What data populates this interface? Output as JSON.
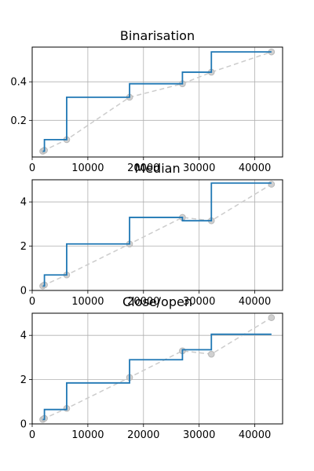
{
  "chart_data": [
    {
      "type": "line",
      "title": "Binarisation",
      "xlim": [
        0,
        45000
      ],
      "ylim": [
        0.01,
        0.58
      ],
      "xticks": [
        0,
        10000,
        20000,
        30000,
        40000
      ],
      "yticks": [
        0.2,
        0.4
      ],
      "ytick_labels": [
        "0.2",
        "0.4"
      ],
      "grid": true,
      "series": [
        {
          "style": "dashed-with-markers",
          "color": "#cccccc",
          "x": [
            1900,
            2200,
            6200,
            17500,
            27000,
            32200,
            43000
          ],
          "y": [
            0.04,
            0.045,
            0.1,
            0.32,
            0.39,
            0.45,
            0.555
          ]
        },
        {
          "style": "step",
          "color": "#1f77b4",
          "x": [
            1900,
            2200,
            6200,
            17500,
            27000,
            32200,
            43000
          ],
          "y": [
            0.04,
            0.1,
            0.32,
            0.39,
            0.45,
            0.555,
            0.555
          ]
        }
      ]
    },
    {
      "type": "line",
      "title": "Median",
      "xlim": [
        0,
        45000
      ],
      "ylim": [
        0,
        5
      ],
      "xticks": [
        0,
        10000,
        20000,
        30000,
        40000
      ],
      "yticks": [
        0,
        2,
        4
      ],
      "ytick_labels": [
        "0",
        "2",
        "4"
      ],
      "grid": true,
      "series": [
        {
          "style": "dashed-with-markers",
          "color": "#cccccc",
          "x": [
            1900,
            2200,
            6200,
            17500,
            27000,
            32200,
            43000
          ],
          "y": [
            0.2,
            0.25,
            0.7,
            2.1,
            3.3,
            3.15,
            4.8
          ]
        },
        {
          "style": "step",
          "color": "#1f77b4",
          "x": [
            1900,
            2200,
            6200,
            17500,
            27000,
            32200,
            43000
          ],
          "y": [
            0.2,
            0.7,
            2.1,
            3.3,
            3.15,
            4.85,
            4.85
          ]
        }
      ]
    },
    {
      "type": "line",
      "title": "Close/open",
      "xlim": [
        0,
        45000
      ],
      "ylim": [
        0,
        5
      ],
      "xticks": [
        0,
        10000,
        20000,
        30000,
        40000
      ],
      "yticks": [
        0,
        2,
        4
      ],
      "ytick_labels": [
        "0",
        "2",
        "4"
      ],
      "grid": true,
      "series": [
        {
          "style": "dashed-with-markers",
          "color": "#cccccc",
          "x": [
            1900,
            2200,
            6200,
            17500,
            27000,
            32200,
            43000
          ],
          "y": [
            0.2,
            0.25,
            0.7,
            2.1,
            3.3,
            3.15,
            4.8
          ]
        },
        {
          "style": "step",
          "color": "#1f77b4",
          "x": [
            1900,
            2200,
            6200,
            17500,
            27000,
            32200,
            43000
          ],
          "y": [
            0.2,
            0.65,
            1.85,
            2.9,
            3.35,
            4.05,
            4.05
          ]
        }
      ]
    }
  ]
}
